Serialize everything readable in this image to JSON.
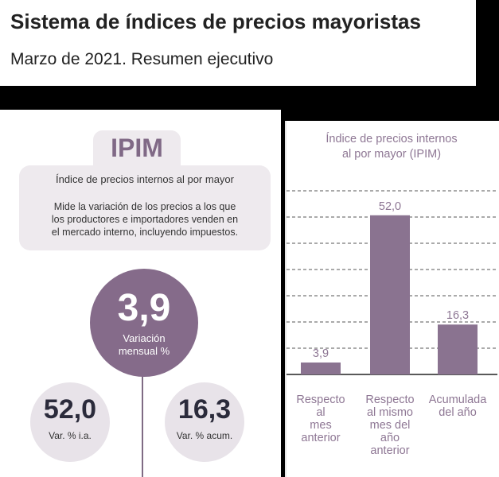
{
  "header": {
    "title": "Sistema de índices de precios mayoristas",
    "subtitle": "Marzo de 2021. Resumen ejecutivo"
  },
  "info": {
    "acronym": "IPIM",
    "name": "Índice de precios internos al por mayor",
    "description_lines": [
      "Mide la variación de los precios a los que",
      "los productores e importadores venden en",
      "el mercado interno, incluyendo impuestos."
    ]
  },
  "indicators": {
    "monthly": {
      "value": "3,9",
      "label_lines": [
        "Variación",
        "mensual %"
      ]
    },
    "interannual": {
      "value": "52,0",
      "label": "Var. % i.a."
    },
    "cumulative": {
      "value": "16,3",
      "label": "Var. % acum."
    }
  },
  "colors": {
    "bar": "#8a7390",
    "accent": "#856b8a",
    "chart_text": "#8e7794"
  },
  "chart_data": {
    "type": "bar",
    "title_lines": [
      "Índice de precios internos",
      "al por mayor (IPIM)"
    ],
    "categories": [
      [
        "Respecto",
        "al",
        "mes",
        "anterior"
      ],
      [
        "Respecto",
        "al mismo",
        "mes del",
        "año",
        "anterior"
      ],
      [
        "Acumulada",
        "del año"
      ]
    ],
    "values": [
      3.9,
      52.0,
      16.3
    ],
    "value_labels": [
      "3,9",
      "52,0",
      "16,3"
    ],
    "ylim": [
      0,
      60
    ],
    "grid": "dashed horizontal",
    "xlabel": "",
    "ylabel": ""
  }
}
